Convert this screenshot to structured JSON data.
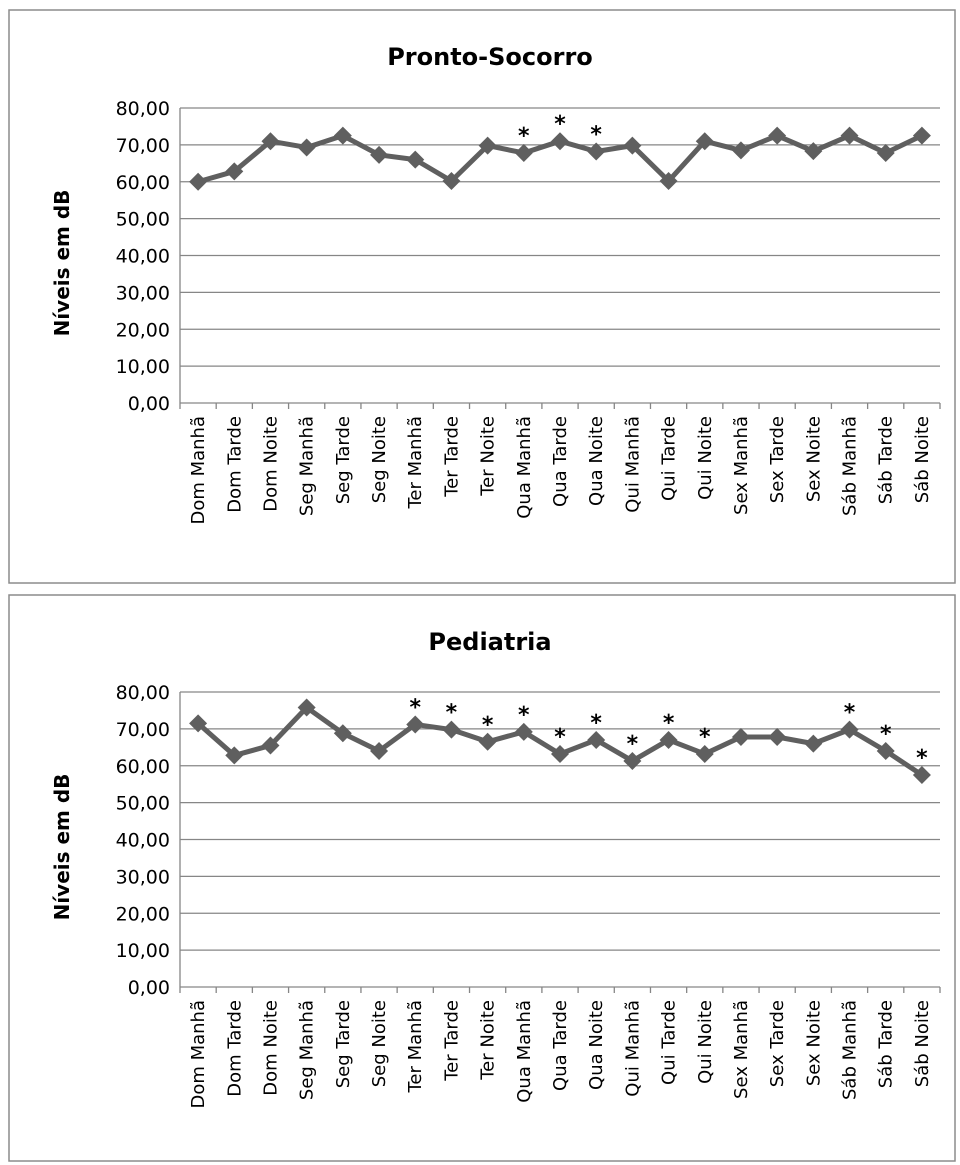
{
  "chart_data": [
    {
      "type": "line",
      "title": "Pronto-Socorro",
      "ylabel": "Níveis em dB",
      "xlabel": "",
      "ylim": [
        0,
        80
      ],
      "yticks": [
        "0,00",
        "10,00",
        "20,00",
        "30,00",
        "40,00",
        "50,00",
        "60,00",
        "70,00",
        "80,00"
      ],
      "grid": true,
      "legend": "none",
      "categories": [
        "Dom Manhã",
        "Dom Tarde",
        "Dom Noite",
        "Seg Manhã",
        "Seg Tarde",
        "Seg Noite",
        "Ter Manhã",
        "Ter Tarde",
        "Ter Noite",
        "Qua Manhã",
        "Qua Tarde",
        "Qua Noite",
        "Qui Manhã",
        "Qui Tarde",
        "Qui Noite",
        "Sex Manhã",
        "Sex Tarde",
        "Sex Noite",
        "Sáb Manhã",
        "Sáb Tarde",
        "Sáb Noite"
      ],
      "series": [
        {
          "values": [
            60.0,
            62.8,
            71.0,
            69.3,
            72.5,
            67.3,
            66.0,
            60.2,
            69.8,
            67.8,
            71.0,
            68.2,
            69.8,
            60.2,
            71.0,
            68.5,
            72.5,
            68.3,
            72.5,
            67.8,
            72.5
          ]
        }
      ],
      "marked": [
        "Qua Manhã",
        "Qua Tarde",
        "Qua Noite"
      ],
      "mark_symbol": "*",
      "colors": {
        "line": "#5f5f5f",
        "grid": "#868686",
        "frame": "#8c8c8c"
      }
    },
    {
      "type": "line",
      "title": "Pediatria",
      "ylabel": "Níveis em dB",
      "xlabel": "",
      "ylim": [
        0,
        80
      ],
      "yticks": [
        "0,00",
        "10,00",
        "20,00",
        "30,00",
        "40,00",
        "50,00",
        "60,00",
        "70,00",
        "80,00"
      ],
      "grid": true,
      "legend": "none",
      "categories": [
        "Dom Manhã",
        "Dom Tarde",
        "Dom Noite",
        "Seg Manhã",
        "Seg Tarde",
        "Seg Noite",
        "Ter Manhã",
        "Ter Tarde",
        "Ter Noite",
        "Qua Manhã",
        "Qua Tarde",
        "Qua Noite",
        "Qui Manhã",
        "Qui Tarde",
        "Qui Noite",
        "Sex Manhã",
        "Sex Tarde",
        "Sex Noite",
        "Sáb Manhã",
        "Sáb Tarde",
        "Sáb Noite"
      ],
      "series": [
        {
          "values": [
            71.5,
            62.8,
            65.5,
            75.8,
            68.8,
            64.0,
            71.2,
            69.8,
            66.5,
            69.2,
            63.2,
            67.0,
            61.3,
            67.0,
            63.2,
            67.8,
            67.8,
            66.0,
            69.8,
            64.0,
            57.5
          ]
        }
      ],
      "marked": [
        "Ter Manhã",
        "Ter Tarde",
        "Ter Noite",
        "Qua Manhã",
        "Qua Tarde",
        "Qua Noite",
        "Qui Manhã",
        "Qui Tarde",
        "Qui Noite",
        "Sáb Manhã",
        "Sáb Tarde",
        "Sáb Noite"
      ],
      "mark_symbol": "*",
      "colors": {
        "line": "#5f5f5f",
        "grid": "#868686",
        "frame": "#8c8c8c"
      }
    }
  ]
}
